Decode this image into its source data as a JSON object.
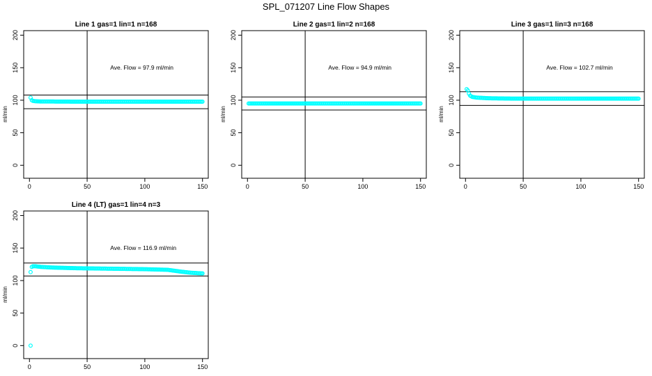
{
  "page": {
    "title": "SPL_071207  Line Flow Shapes"
  },
  "colors": {
    "points": "#00ffff",
    "lines": "#000000",
    "background": "#ffffff"
  },
  "chart_data": [
    {
      "type": "scatter",
      "title": "Line 1 gas=1 lin=1 n=168",
      "ylabel": "ml/min",
      "xlim": [
        -5,
        155
      ],
      "ylim": [
        -20,
        207
      ],
      "xticks": [
        0,
        50,
        100,
        150
      ],
      "yticks": [
        0,
        50,
        100,
        150,
        200
      ],
      "annotation": "Ave. Flow = 97.9 ml/min",
      "hlines": [
        108,
        87
      ],
      "vline": 50,
      "series": [
        {
          "points": [
            [
              1,
              104
            ],
            [
              2,
              100
            ],
            [
              3,
              99
            ],
            [
              5,
              98.5
            ],
            [
              10,
              98
            ],
            [
              20,
              98
            ],
            [
              40,
              97.8
            ],
            [
              60,
              97.8
            ],
            [
              80,
              97.8
            ],
            [
              100,
              97.8
            ],
            [
              120,
              97.8
            ],
            [
              140,
              97.8
            ],
            [
              150,
              97.8
            ]
          ]
        }
      ]
    },
    {
      "type": "scatter",
      "title": "Line 2 gas=1 lin=2 n=168",
      "ylabel": "ml/min",
      "xlim": [
        -5,
        155
      ],
      "ylim": [
        -20,
        207
      ],
      "xticks": [
        0,
        50,
        100,
        150
      ],
      "yticks": [
        0,
        50,
        100,
        150,
        200
      ],
      "annotation": "Ave. Flow = 94.9 ml/min",
      "hlines": [
        105,
        85
      ],
      "vline": 50,
      "series": [
        {
          "points": [
            [
              1,
              95
            ],
            [
              10,
              95
            ],
            [
              20,
              95
            ],
            [
              40,
              95
            ],
            [
              60,
              95
            ],
            [
              80,
              95
            ],
            [
              100,
              95
            ],
            [
              120,
              95
            ],
            [
              140,
              95
            ],
            [
              150,
              95
            ]
          ]
        }
      ]
    },
    {
      "type": "scatter",
      "title": "Line 3 gas=1 lin=3 n=168",
      "ylabel": "ml/min",
      "xlim": [
        -5,
        155
      ],
      "ylim": [
        -20,
        207
      ],
      "xticks": [
        0,
        50,
        100,
        150
      ],
      "yticks": [
        0,
        50,
        100,
        150,
        200
      ],
      "annotation": "Ave. Flow = 102.7 ml/min",
      "hlines": [
        113,
        92
      ],
      "vline": 50,
      "series": [
        {
          "points": [
            [
              1,
              117
            ],
            [
              2,
              115
            ],
            [
              3,
              110
            ],
            [
              4,
              107
            ],
            [
              6,
              105
            ],
            [
              10,
              104
            ],
            [
              20,
              103
            ],
            [
              40,
              102.5
            ],
            [
              60,
              102.5
            ],
            [
              80,
              102.5
            ],
            [
              100,
              102.5
            ],
            [
              120,
              102.5
            ],
            [
              140,
              102.5
            ],
            [
              150,
              102.5
            ]
          ]
        }
      ]
    },
    {
      "type": "scatter",
      "title": "Line 4 (LT) gas=1 lin=4 n=3",
      "ylabel": "ml/min",
      "xlim": [
        -5,
        155
      ],
      "ylim": [
        -20,
        207
      ],
      "xticks": [
        0,
        50,
        100,
        150
      ],
      "yticks": [
        0,
        50,
        100,
        150,
        200
      ],
      "annotation": "Ave. Flow = 116.9 ml/min",
      "hlines": [
        127,
        107
      ],
      "vline": 50,
      "series": [
        {
          "points": [
            [
              1,
              0
            ],
            [
              1,
              113
            ],
            [
              2,
              121
            ],
            [
              3,
              122
            ],
            [
              5,
              122
            ],
            [
              10,
              121
            ],
            [
              20,
              120
            ],
            [
              40,
              119
            ],
            [
              60,
              118.5
            ],
            [
              80,
              118
            ],
            [
              100,
              117.5
            ],
            [
              120,
              116.5
            ],
            [
              130,
              114
            ],
            [
              140,
              112
            ],
            [
              150,
              111
            ]
          ]
        }
      ]
    }
  ]
}
